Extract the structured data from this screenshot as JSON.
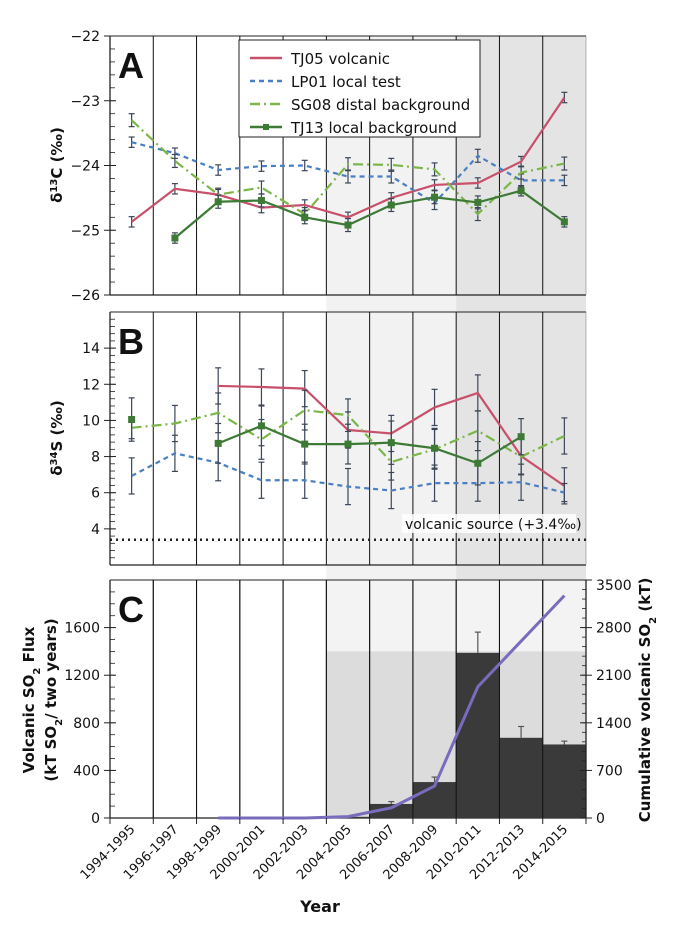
{
  "chart_data": [
    {
      "type": "line",
      "panel_label": "A",
      "ylabel": "δ13C (‰)",
      "ylim": [
        -26,
        -22
      ],
      "yticks": [
        -22,
        -23,
        -24,
        -25,
        -26
      ],
      "categories": [
        "1994-1995",
        "1996-1997",
        "1998-1999",
        "2000-2001",
        "2002-2003",
        "2004-2005",
        "2006-2007",
        "2008-2009",
        "2010-2011",
        "2012-2013",
        "2014-2015"
      ],
      "legend_position": "top-center",
      "series": [
        {
          "name": "TJ05 volcanic",
          "color": "#c8506a",
          "style": "solid",
          "values": [
            -24.87,
            -24.36,
            -24.45,
            -24.65,
            -24.61,
            -24.8,
            -24.5,
            -24.3,
            -24.27,
            -23.94,
            -22.95
          ],
          "errors": [
            0.08,
            0.08,
            0.08,
            0.08,
            0.08,
            0.08,
            0.08,
            0.08,
            0.08,
            0.08,
            0.08
          ]
        },
        {
          "name": "LP01 local test",
          "color": "#4a7fc1",
          "style": "dashed",
          "values": [
            -23.64,
            -23.81,
            -24.07,
            -24.01,
            -24.0,
            -24.17,
            -24.17,
            -24.58,
            -23.85,
            -24.23,
            -24.23
          ],
          "errors": [
            0.08,
            0.08,
            0.08,
            0.08,
            0.08,
            0.1,
            0.1,
            0.1,
            0.1,
            0.1,
            0.08
          ]
        },
        {
          "name": "SG08 distal background",
          "color": "#7ab648",
          "style": "dashdot",
          "values": [
            -23.3,
            -23.93,
            -24.45,
            -24.34,
            -24.75,
            -23.98,
            -23.99,
            -24.06,
            -24.75,
            -24.11,
            -23.97
          ],
          "errors": [
            0.1,
            0.1,
            0.1,
            0.1,
            0.1,
            0.1,
            0.1,
            0.1,
            0.1,
            0.1,
            0.1
          ]
        },
        {
          "name": "TJ13 local background",
          "color": "#3d7a35",
          "style": "solid-marker",
          "values": [
            null,
            -25.12,
            -24.56,
            -24.54,
            -24.8,
            -24.92,
            -24.61,
            -24.49,
            -24.57,
            -24.39,
            -24.87
          ],
          "errors": [
            null,
            0.08,
            0.1,
            0.1,
            0.1,
            0.1,
            0.1,
            0.1,
            0.1,
            0.08,
            0.08
          ]
        }
      ]
    },
    {
      "type": "line",
      "panel_label": "B",
      "ylabel": "δ34S (‰)",
      "ylim": [
        2,
        16
      ],
      "yticks": [
        4,
        6,
        8,
        10,
        12,
        14
      ],
      "reference_line": {
        "value": 3.4,
        "label": "volcanic source (+3.4‰)"
      },
      "series": [
        {
          "name": "TJ05 volcanic",
          "values": [
            null,
            null,
            11.91,
            11.85,
            11.76,
            9.47,
            9.28,
            10.72,
            11.52,
            8.03,
            6.38
          ],
          "errors": [
            null,
            null,
            1.0,
            1.0,
            1.0,
            1.0,
            1.0,
            1.0,
            1.0,
            1.0,
            1.0
          ]
        },
        {
          "name": "LP01 local test",
          "values": [
            6.93,
            8.18,
            7.66,
            6.69,
            6.69,
            6.34,
            6.12,
            6.53,
            6.53,
            6.58,
            6.01
          ],
          "errors": [
            1.0,
            1.0,
            1.0,
            1.0,
            1.0,
            1.0,
            1.0,
            1.0,
            1.0,
            1.0,
            0.5
          ]
        },
        {
          "name": "SG08 distal background",
          "values": [
            9.59,
            9.83,
            10.42,
            8.95,
            10.57,
            10.29,
            7.7,
            8.4,
            9.43,
            7.99,
            9.14
          ],
          "errors": [
            0.6,
            1.0,
            1.1,
            1.1,
            1.1,
            0.9,
            1.0,
            1.1,
            1.1,
            1.0,
            1.0
          ]
        },
        {
          "name": "TJ13 local background",
          "values": [
            10.05,
            null,
            8.73,
            9.7,
            8.69,
            8.69,
            8.77,
            8.46,
            7.63,
            9.1,
            null
          ],
          "errors": [
            1.2,
            null,
            1.1,
            1.1,
            1.1,
            1.1,
            1.2,
            1.1,
            1.2,
            1.0,
            null
          ]
        }
      ]
    },
    {
      "type": "bar+line",
      "panel_label": "C",
      "xlabel": "Year",
      "ylabel_left": "Volcanic SO2 Flux (kT SO2/ two years)",
      "ylabel_right": "Cumulative volcanic SO2 (kT)",
      "ylim_left": [
        0,
        2000
      ],
      "yticks_left": [
        0,
        400,
        800,
        1200,
        1600
      ],
      "ylim_right": [
        0,
        3500
      ],
      "yticks_right": [
        0,
        700,
        1400,
        2100,
        2800,
        3500
      ],
      "bars": {
        "color": "#3a3a3a",
        "values": [
          0,
          0,
          0,
          0,
          0,
          10,
          118,
          302,
          1388,
          674,
          618
        ],
        "errors": [
          null,
          null,
          null,
          null,
          null,
          5,
          20,
          42,
          174,
          95,
          28
        ]
      },
      "cumulative": {
        "color": "#7a6bbd",
        "values": [
          null,
          null,
          0,
          0,
          0,
          20,
          150,
          470,
          1930,
          2600,
          3270
        ]
      }
    }
  ],
  "shading": {
    "light": "#f2f2f2",
    "dark": "#e4e4e4",
    "c_lower": "#dcdcdc"
  }
}
